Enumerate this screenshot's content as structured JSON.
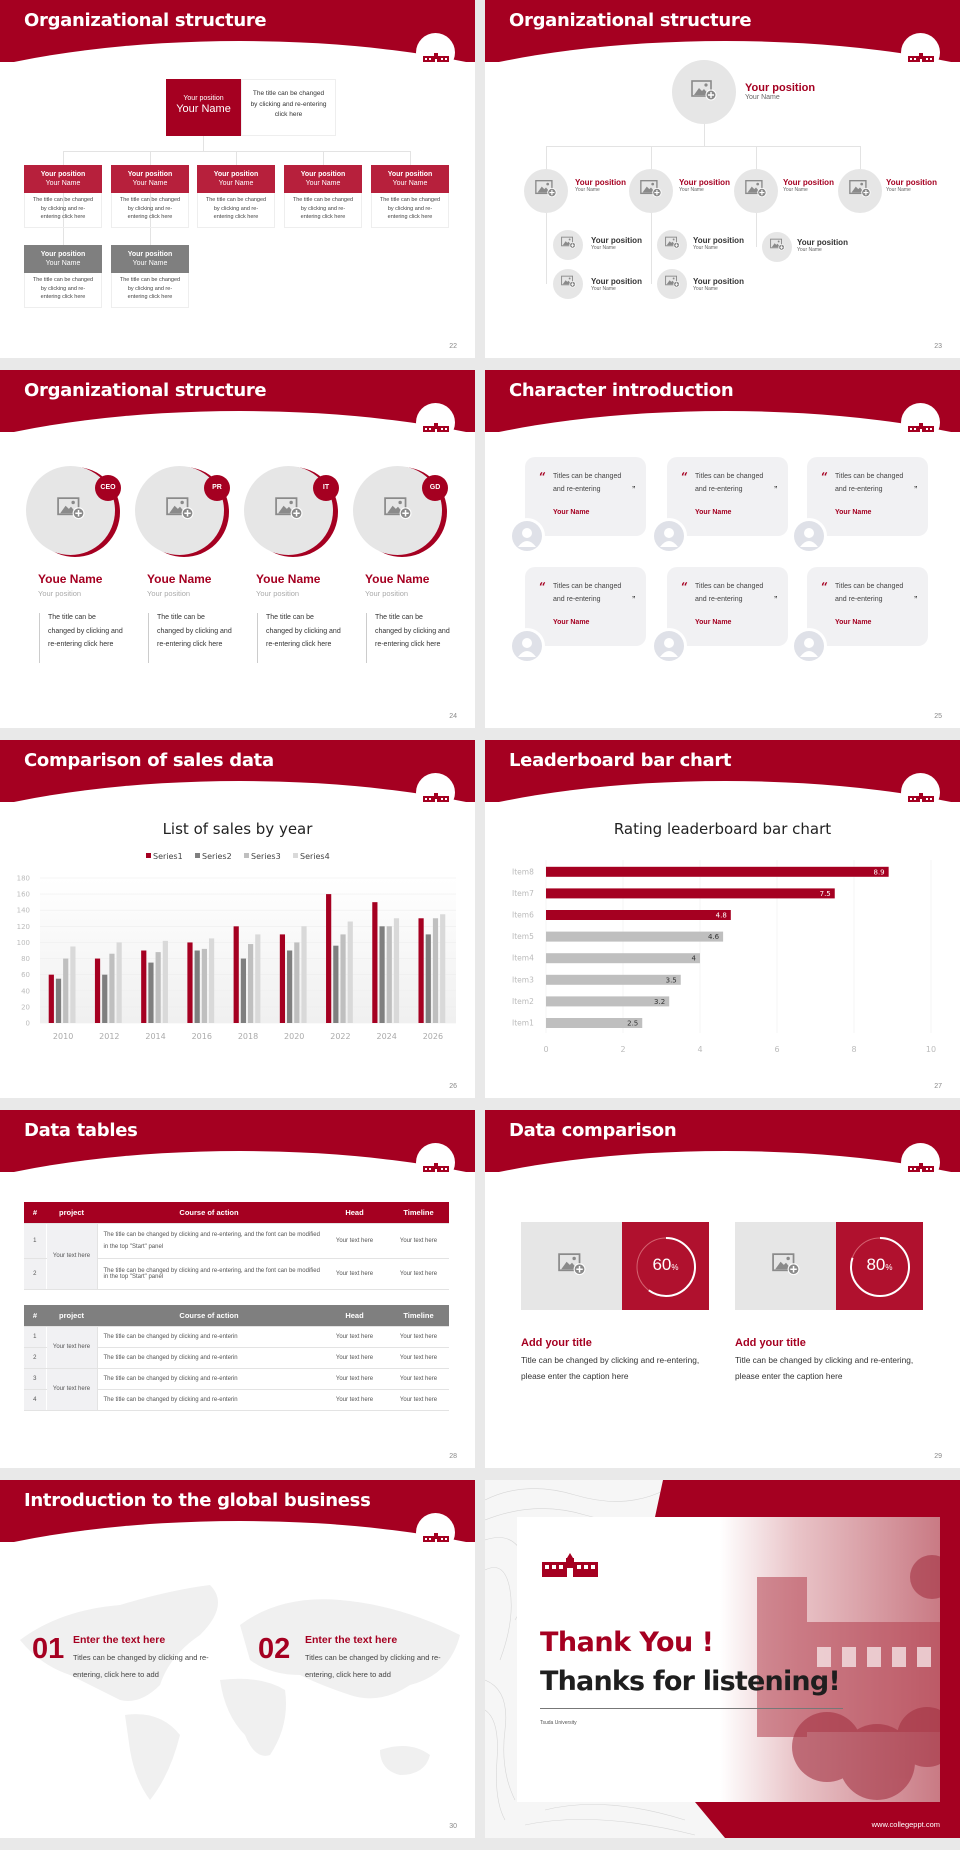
{
  "colors": {
    "brand": "#a50021",
    "card_red": "#b7203c",
    "gray": "#7f7f7f",
    "light": "#e6e6e6"
  },
  "icons": {
    "logo": "university-building-logo",
    "image_placeholder": "image-add-icon",
    "avatar": "user-avatar-icon"
  },
  "slides": [
    {
      "page": "22",
      "title": "Organizational structure",
      "top": {
        "position": "Your position",
        "name": "Your Name",
        "desc": "The title can be changed by clicking and re-entering click here"
      },
      "cards": [
        {
          "position": "Your position",
          "name": "Your Name",
          "desc": "The title can be changed by clicking and re-entering click here"
        },
        {
          "position": "Your position",
          "name": "Your Name",
          "desc": "The title can be changed by clicking and re-entering click here"
        },
        {
          "position": "Your position",
          "name": "Your Name",
          "desc": "The title can be changed by clicking and re-entering click here"
        },
        {
          "position": "Your position",
          "name": "Your Name",
          "desc": "The title can be changed by clicking and re-entering click here"
        },
        {
          "position": "Your position",
          "name": "Your Name",
          "desc": "The title can be changed by clicking and re-entering click here"
        },
        {
          "position": "Your position",
          "name": "Your Name",
          "desc": "The title can be changed by clicking and re-entering click here"
        },
        {
          "position": "Your position",
          "name": "Your Name",
          "desc": "The title can be changed by clicking and re-entering click here"
        }
      ]
    },
    {
      "page": "23",
      "title": "Organizational structure",
      "top": {
        "position": "Your position",
        "name": "Your Name"
      },
      "nodes": [
        {
          "position": "Your position",
          "name": "Your Name"
        },
        {
          "position": "Your position",
          "name": "Your Name"
        },
        {
          "position": "Your position",
          "name": "Your Name"
        },
        {
          "position": "Your position",
          "name": "Your Name"
        }
      ],
      "subnodes": [
        {
          "position": "Your position",
          "name": "Your Name"
        },
        {
          "position": "Your position",
          "name": "Your Name"
        },
        {
          "position": "Your position",
          "name": "Your Name"
        },
        {
          "position": "Your position",
          "name": "Your Name"
        },
        {
          "position": "Your position",
          "name": "Your Name"
        }
      ]
    },
    {
      "page": "24",
      "title": "Organizational structure",
      "members": [
        {
          "badge": "CEO",
          "name": "Youe Name",
          "position": "Your position",
          "desc": "The title can be changed by clicking and re-entering click here"
        },
        {
          "badge": "PR",
          "name": "Youe Name",
          "position": "Your position",
          "desc": "The title can be changed by clicking and re-entering click here"
        },
        {
          "badge": "IT",
          "name": "Youe Name",
          "position": "Your position",
          "desc": "The title can be changed by clicking and re-entering click here"
        },
        {
          "badge": "GD",
          "name": "Youe Name",
          "position": "Your position",
          "desc": "The title can be changed by clicking and re-entering click here"
        }
      ]
    },
    {
      "page": "25",
      "title": "Character introduction",
      "quotes": [
        {
          "text": "Titles can be changed and re-entering",
          "name": "Your Name"
        },
        {
          "text": "Titles can be changed and re-entering",
          "name": "Your Name"
        },
        {
          "text": "Titles can be changed and re-entering",
          "name": "Your Name"
        },
        {
          "text": "Titles can be changed and re-entering",
          "name": "Your Name"
        },
        {
          "text": "Titles can be changed and re-entering",
          "name": "Your Name"
        },
        {
          "text": "Titles can be changed and re-entering",
          "name": "Your Name"
        }
      ],
      "open_quote": "“",
      "close_quote": "”"
    },
    {
      "page": "26",
      "title": "Comparison of sales data"
    },
    {
      "page": "27",
      "title": "Leaderboard bar chart"
    },
    {
      "page": "28",
      "title": "Data tables",
      "headers": [
        "#",
        "project",
        "Course of action",
        "Head",
        "Timeline"
      ],
      "table1": {
        "project": "Your text here",
        "rows": [
          {
            "n": "1",
            "action": "The title can be changed by clicking and re-entering, and the font can be modified in the top \"Start\" panel",
            "head": "Your text here",
            "timeline": "Your text here"
          },
          {
            "n": "2",
            "action": "The title can be changed by clicking and re-entering, and the font can be modified in the top \"Start\" panel",
            "head": "Your text here",
            "timeline": "Your text here"
          }
        ]
      },
      "table2": {
        "projects": [
          "Your text here",
          "Your text here"
        ],
        "rows": [
          {
            "n": "1",
            "action": "The title can be changed by clicking and re-enterin",
            "head": "Your text here",
            "timeline": "Your text here"
          },
          {
            "n": "2",
            "action": "The title can be changed by clicking and re-enterin",
            "head": "Your text here",
            "timeline": "Your text here"
          },
          {
            "n": "3",
            "action": "The title can be changed by clicking and re-enterin",
            "head": "Your text here",
            "timeline": "Your text here"
          },
          {
            "n": "4",
            "action": "The title can be changed by clicking and re-enterin",
            "head": "Your text here",
            "timeline": "Your text here"
          }
        ]
      }
    },
    {
      "page": "29",
      "title": "Data comparison",
      "items": [
        {
          "percent": 60,
          "value": "60",
          "unit": "%",
          "heading": "Add your title",
          "text": "Title can be changed by clicking and re-entering, please enter the caption here"
        },
        {
          "percent": 80,
          "value": "80",
          "unit": "%",
          "heading": "Add your title",
          "text": "Title can be changed by clicking and re-entering, please enter the caption here"
        }
      ]
    },
    {
      "page": "30",
      "title": "Introduction to the global business",
      "items": [
        {
          "num": "01",
          "heading": "Enter the text here",
          "text": "Titles can be changed by clicking and re-entering, click here to add"
        },
        {
          "num": "02",
          "heading": "Enter the text here",
          "text": "Titles can be changed by clicking and re-entering, click here to add"
        }
      ]
    },
    {
      "thanks": "Thank You !",
      "listening": "Thanks for listening!",
      "university": "Tsuda University",
      "website": "www.collegeppt.com"
    }
  ],
  "chart_data": [
    {
      "type": "bar",
      "title": "List of sales by year",
      "categories": [
        "2010",
        "2012",
        "2014",
        "2016",
        "2018",
        "2020",
        "2022",
        "2024",
        "2026"
      ],
      "series": [
        {
          "name": "Series1",
          "color": "#a50021",
          "values": [
            60,
            80,
            90,
            100,
            120,
            110,
            160,
            150,
            130
          ]
        },
        {
          "name": "Series2",
          "color": "#7f7f7f",
          "values": [
            55,
            60,
            75,
            90,
            80,
            90,
            96,
            120,
            110
          ]
        },
        {
          "name": "Series3",
          "color": "#bfbfbf",
          "values": [
            80,
            86,
            88,
            92,
            98,
            100,
            110,
            120,
            130
          ]
        },
        {
          "name": "Series4",
          "color": "#d9d9d9",
          "values": [
            95,
            100,
            102,
            105,
            110,
            120,
            126,
            130,
            135
          ]
        }
      ],
      "ylim": [
        0,
        180
      ],
      "yticks": [
        "0",
        "20",
        "40",
        "60",
        "80",
        "100",
        "120",
        "140",
        "160",
        "180"
      ],
      "grid": true,
      "legend": "top"
    },
    {
      "type": "bar",
      "orientation": "horizontal",
      "title": "Rating leaderboard bar chart",
      "categories": [
        "Item1",
        "Item2",
        "Item3",
        "Item4",
        "Item5",
        "Item6",
        "Item7",
        "Item8"
      ],
      "values": [
        2.5,
        3.2,
        3.5,
        4,
        4.6,
        4.8,
        7.5,
        8.9
      ],
      "labels": [
        "2.5",
        "3.2",
        "3.5",
        "4",
        "4.6",
        "4.8",
        "7.5",
        "8.9"
      ],
      "highlight_color": "#a50021",
      "base_color": "#bfbfbf",
      "xlim": [
        0,
        10
      ],
      "xticks": [
        "0",
        "2",
        "4",
        "6",
        "8",
        "10"
      ],
      "grid": true
    }
  ]
}
